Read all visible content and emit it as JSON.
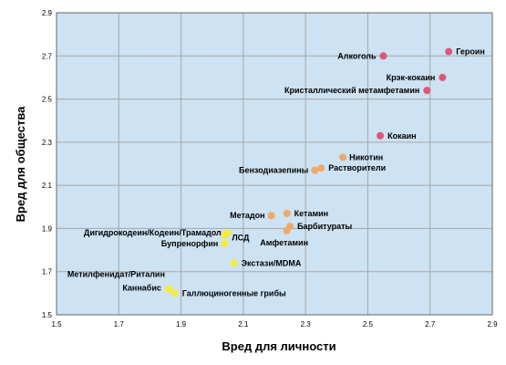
{
  "chart_data": {
    "type": "scatter",
    "title": "",
    "xlabel": "Вред для личности",
    "ylabel": "Вред для общества",
    "xlim": [
      1.5,
      2.9
    ],
    "ylim": [
      1.5,
      2.9
    ],
    "xticks": [
      "1.5",
      "1.7",
      "1.9",
      "2.1",
      "2.3",
      "2.5",
      "2.7",
      "2.9"
    ],
    "yticks": [
      "1.5",
      "1.7",
      "1.9",
      "2.1",
      "2.3",
      "2.5",
      "2.7",
      "2.9"
    ],
    "grid": true,
    "colors": {
      "high": "#e0557a",
      "medium": "#f0a868",
      "low": "#f5ec3a",
      "plot_bg": "#cde2f2",
      "grid": "#a7a7a7"
    },
    "points": [
      {
        "label": "Героин",
        "x": 2.76,
        "y": 2.72,
        "group": "high"
      },
      {
        "label": "Алкоголь",
        "x": 2.55,
        "y": 2.7,
        "group": "high"
      },
      {
        "label": "Крэк-кокаин",
        "x": 2.74,
        "y": 2.6,
        "group": "high"
      },
      {
        "label": "Кристаллический метамфетамин",
        "x": 2.69,
        "y": 2.54,
        "group": "high"
      },
      {
        "label": "Кокаин",
        "x": 2.54,
        "y": 2.33,
        "group": "high"
      },
      {
        "label": "Никотин",
        "x": 2.42,
        "y": 2.23,
        "group": "medium"
      },
      {
        "label": "Растворители",
        "x": 2.35,
        "y": 2.18,
        "group": "medium"
      },
      {
        "label": "Бензодиазепины",
        "x": 2.33,
        "y": 2.17,
        "group": "medium"
      },
      {
        "label": "Кетамин",
        "x": 2.24,
        "y": 1.97,
        "group": "medium"
      },
      {
        "label": "Метадон",
        "x": 2.19,
        "y": 1.96,
        "group": "medium"
      },
      {
        "label": "Барбитураты",
        "x": 2.25,
        "y": 1.91,
        "group": "medium"
      },
      {
        "label": "Амфетамин",
        "x": 2.24,
        "y": 1.89,
        "group": "medium"
      },
      {
        "label": "Дигидрокодеин/Кодеин/Трамадол",
        "x": 2.05,
        "y": 1.88,
        "group": "low"
      },
      {
        "label": "ЛСД",
        "x": 2.04,
        "y": 1.87,
        "group": "low"
      },
      {
        "label": "Бупренорфин",
        "x": 2.04,
        "y": 1.83,
        "group": "low"
      },
      {
        "label": "Экстази/MDMA",
        "x": 2.07,
        "y": 1.74,
        "group": "low"
      },
      {
        "label": "Метилфенидат/Риталин",
        "x": 1.86,
        "y": 1.62,
        "group": "low"
      },
      {
        "label": "Каннабис",
        "x": 1.86,
        "y": 1.62,
        "group": "low"
      },
      {
        "label": "Галлюциногенные грибы",
        "x": 1.88,
        "y": 1.6,
        "group": "low"
      }
    ]
  }
}
